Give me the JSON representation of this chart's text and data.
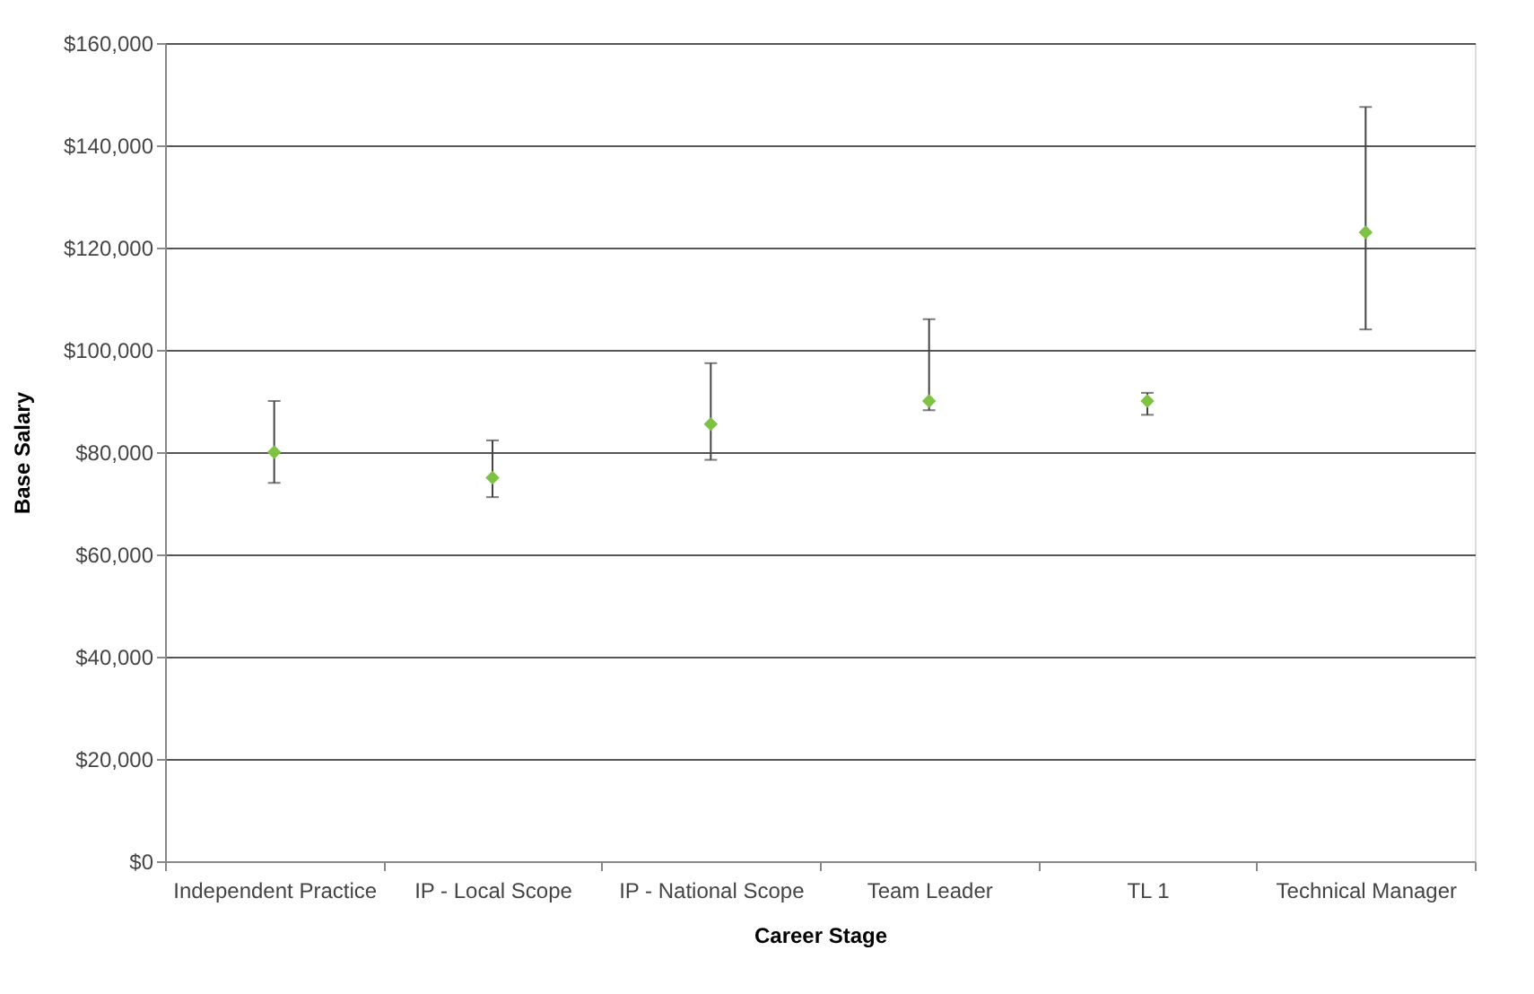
{
  "chart_data": {
    "type": "scatter",
    "xlabel": "Career Stage",
    "ylabel": "Base Salary",
    "categories": [
      "Independent Practice",
      "IP - Local Scope",
      "IP - National Scope",
      "Team Leader",
      "TL 1",
      "Technical Manager"
    ],
    "series": [
      {
        "color": "#7dc242",
        "values": [
          80000,
          75000,
          85500,
          90000,
          90000,
          123000
        ],
        "errors": [
          [
            74000,
            90000
          ],
          [
            71200,
            82300
          ],
          [
            78500,
            97400
          ],
          [
            88200,
            106000
          ],
          [
            87300,
            91600
          ],
          [
            104000,
            147500
          ]
        ]
      }
    ],
    "ylim": [
      0,
      160000
    ],
    "yticks": [
      {
        "value": 0,
        "label": "$0"
      },
      {
        "value": 20000,
        "label": "$20,000"
      },
      {
        "value": 40000,
        "label": "$40,000"
      },
      {
        "value": 60000,
        "label": "$60,000"
      },
      {
        "value": 80000,
        "label": "$80,000"
      },
      {
        "value": 100000,
        "label": "$100,000"
      },
      {
        "value": 120000,
        "label": "$120,000"
      },
      {
        "value": 140000,
        "label": "$140,000"
      },
      {
        "value": 160000,
        "label": "$160,000"
      }
    ],
    "grid": "y",
    "marker": "diamond"
  }
}
